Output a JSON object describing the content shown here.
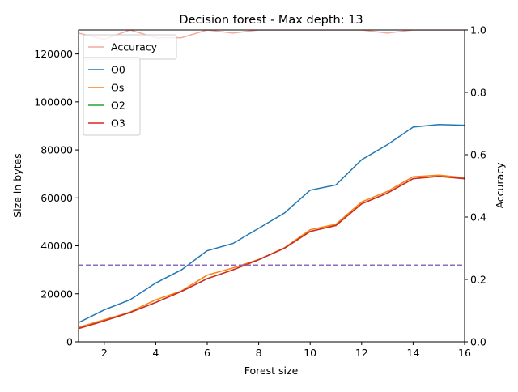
{
  "chart_data": {
    "type": "line",
    "title": "Decision forest - Max depth: 13",
    "xlabel": "Forest size",
    "ylabel": "Size in bytes",
    "y2label": "Accuracy",
    "x": [
      1,
      2,
      3,
      4,
      5,
      6,
      7,
      8,
      9,
      10,
      11,
      12,
      13,
      14,
      15,
      16
    ],
    "xlim": [
      1,
      16
    ],
    "ylim": [
      0,
      130000
    ],
    "y2lim": [
      0,
      1.0
    ],
    "xticks": [
      2,
      4,
      6,
      8,
      10,
      12,
      14,
      16
    ],
    "yticks": [
      0,
      20000,
      40000,
      60000,
      80000,
      100000,
      120000
    ],
    "y2ticks": [
      0.0,
      0.2,
      0.4,
      0.6,
      0.8,
      1.0
    ],
    "xtick_labels": [
      "2",
      "4",
      "6",
      "8",
      "10",
      "12",
      "14",
      "16"
    ],
    "ytick_labels": [
      "0",
      "20000",
      "40000",
      "60000",
      "80000",
      "100000",
      "120000"
    ],
    "y2tick_labels": [
      "0.0",
      "0.2",
      "0.4",
      "0.6",
      "0.8",
      "1.0"
    ],
    "grid": false,
    "series": [
      {
        "name": "O0",
        "color": "#1f77b4",
        "axis": "left",
        "values": [
          8000,
          13300,
          17500,
          24500,
          30000,
          38000,
          41000,
          47300,
          53700,
          63200,
          65400,
          75900,
          82200,
          89500,
          90600,
          90300
        ]
      },
      {
        "name": "Os",
        "color": "#ff7f0e",
        "axis": "left",
        "values": [
          6000,
          9200,
          12400,
          17500,
          21200,
          27800,
          30800,
          34300,
          39200,
          46700,
          49000,
          58300,
          62700,
          68800,
          69500,
          68400
        ]
      },
      {
        "name": "O2",
        "color": "#2ca02c",
        "axis": "left",
        "values": [
          5500,
          8700,
          12200,
          16400,
          21000,
          26300,
          30000,
          34200,
          39000,
          46000,
          48500,
          57500,
          62000,
          68000,
          69000,
          68000
        ]
      },
      {
        "name": "O3",
        "color": "#d62728",
        "axis": "left",
        "values": [
          5500,
          8700,
          12200,
          16400,
          21000,
          26300,
          30000,
          34200,
          39000,
          46000,
          48500,
          57500,
          62000,
          68000,
          69000,
          68000
        ]
      }
    ],
    "accuracy_series": {
      "name": "Accuracy",
      "color": "#f4aaa4",
      "axis": "right",
      "values": [
        0.99,
        0.97,
        1.0,
        0.975,
        0.975,
        1.0,
        0.99,
        1.0,
        1.0,
        1.0,
        1.0,
        1.0,
        0.99,
        1.0,
        1.0,
        1.0
      ]
    },
    "reference_line": {
      "y": 32000,
      "color": "#9467bd",
      "style": "dashed",
      "axis": "left"
    },
    "legend_placement": "top-left"
  }
}
